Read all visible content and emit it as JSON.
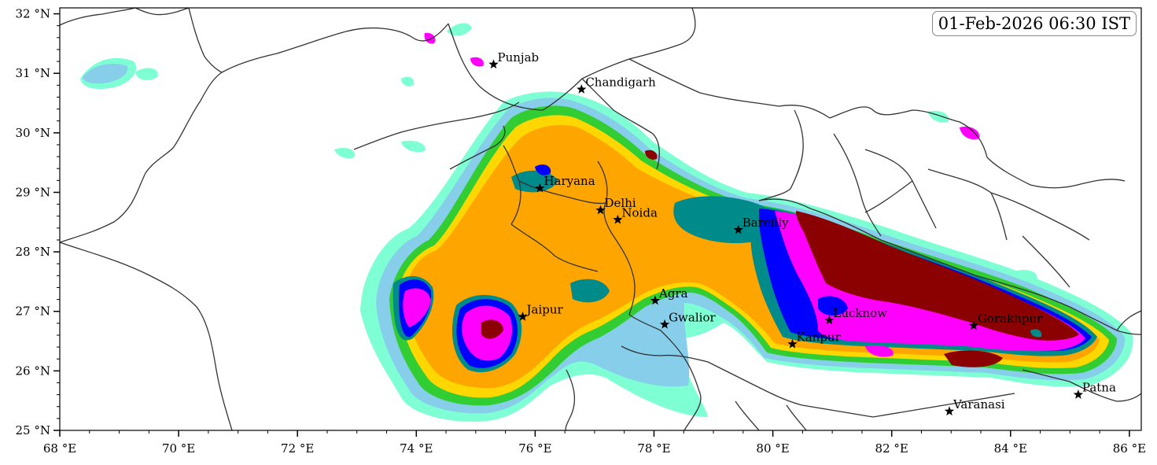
{
  "map": {
    "timestamp": "01-Feb-2026 06:30 IST",
    "x_ticks": [
      "68 °E",
      "70 °E",
      "72 °E",
      "74 °E",
      "76 °E",
      "78 °E",
      "80 °E",
      "82 °E",
      "84 °E",
      "86 °E"
    ],
    "y_ticks": [
      "25 °N",
      "26 °N",
      "27 °N",
      "28 °N",
      "29 °N",
      "30 °N",
      "31 °N",
      "32 °N"
    ],
    "lon_range": [
      68,
      86.2
    ],
    "lat_range": [
      25,
      32.1
    ],
    "cities": [
      {
        "name": "Punjab",
        "lon": 75.3,
        "lat": 31.15
      },
      {
        "name": "Chandigarh",
        "lon": 76.78,
        "lat": 30.73
      },
      {
        "name": "Haryana",
        "lon": 76.08,
        "lat": 29.07
      },
      {
        "name": "Delhi",
        "lon": 77.1,
        "lat": 28.7
      },
      {
        "name": "Noida",
        "lon": 77.39,
        "lat": 28.54
      },
      {
        "name": "Bareilly",
        "lon": 79.42,
        "lat": 28.37
      },
      {
        "name": "Agra",
        "lon": 78.02,
        "lat": 27.18
      },
      {
        "name": "Jaipur",
        "lon": 75.79,
        "lat": 26.91
      },
      {
        "name": "Gwalior",
        "lon": 78.18,
        "lat": 26.78
      },
      {
        "name": "Lucknow",
        "lon": 80.95,
        "lat": 26.85
      },
      {
        "name": "Kanpur",
        "lon": 80.33,
        "lat": 26.45
      },
      {
        "name": "Gorakhpur",
        "lon": 83.38,
        "lat": 26.76
      },
      {
        "name": "Varanasi",
        "lon": 82.97,
        "lat": 25.32
      },
      {
        "name": "Patna",
        "lon": 85.14,
        "lat": 25.6
      }
    ],
    "colors": {
      "level1": "#7fffd4",
      "level2": "#87ceeb",
      "level3": "#32cd32",
      "level4": "#ffd700",
      "level5": "#ffa500",
      "level6": "#008b8b",
      "level7": "#0000ff",
      "level8": "#ff00ff",
      "level9": "#8b0000",
      "boundary": "#333333"
    }
  }
}
